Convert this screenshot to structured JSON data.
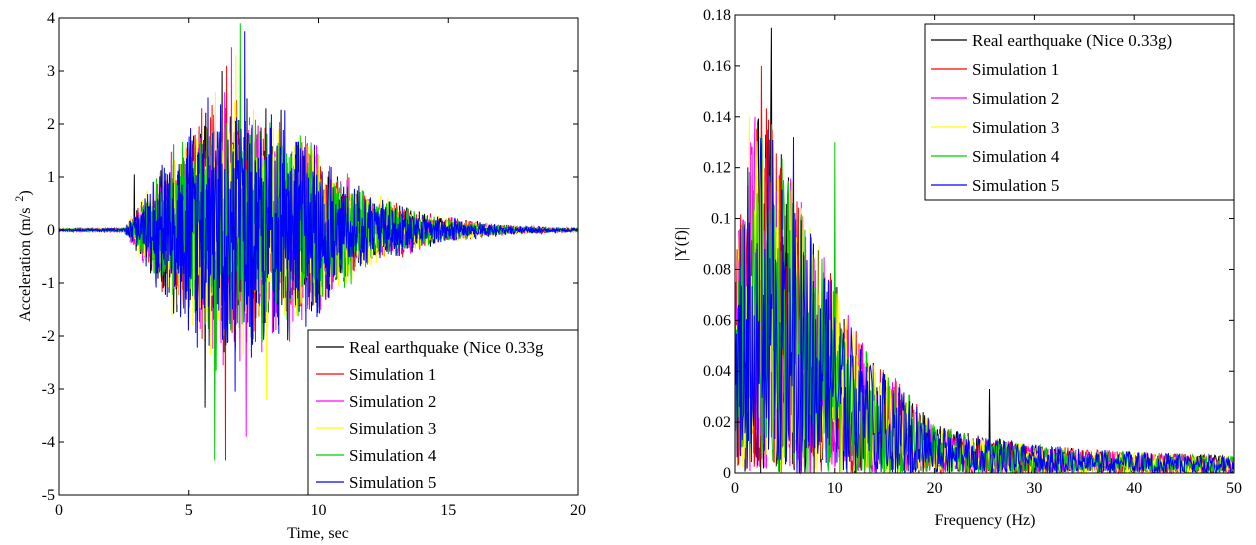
{
  "chart_data": [
    {
      "type": "line",
      "title": "",
      "xlabel": "Time, sec",
      "ylabel": "Acceleration (m/s",
      "ylabel_sup": "2",
      "ylabel_end": ")",
      "xlim": [
        0,
        20
      ],
      "ylim": [
        -5,
        4
      ],
      "xticks": [
        "0",
        "5",
        "10",
        "15",
        "20"
      ],
      "yticks": [
        "-5",
        "-4",
        "-3",
        "-2",
        "-1",
        "0",
        "1",
        "2",
        "3",
        "4"
      ],
      "grid": false,
      "legend_position": "bottom-right",
      "description": "Acceleration time histories of a real earthquake record and five simulated ground motions",
      "envelope": {
        "x": [
          0,
          2.5,
          3,
          3.5,
          4,
          5,
          5.5,
          6,
          6.5,
          7,
          8,
          9,
          10,
          11,
          12,
          13,
          14,
          15,
          16,
          17,
          18,
          20
        ],
        "amplitude": [
          0.03,
          0.05,
          0.6,
          1.2,
          1.8,
          2.8,
          3.1,
          3.8,
          3.5,
          3.4,
          3.1,
          2.9,
          2.3,
          1.5,
          1.0,
          0.8,
          0.5,
          0.35,
          0.25,
          0.15,
          0.1,
          0.05
        ]
      },
      "series": [
        {
          "name": "Real earthquake (Nice 0.33g",
          "color": "#000000",
          "peak": 3.0,
          "trough": -3.35
        },
        {
          "name": "Simulation 1",
          "color": "#ff0000",
          "peak": 3.1,
          "trough": -4.35
        },
        {
          "name": "Simulation 2",
          "color": "#ff00ff",
          "peak": 3.45,
          "trough": -3.9
        },
        {
          "name": "Simulation 3",
          "color": "#ffff00",
          "peak": 3.3,
          "trough": -3.2
        },
        {
          "name": "Simulation 4",
          "color": "#00cc00",
          "peak": 3.9,
          "trough": -4.35
        },
        {
          "name": "Simulation 5",
          "color": "#0000ff",
          "peak": 3.75,
          "trough": -3.05
        }
      ]
    },
    {
      "type": "line",
      "title": "",
      "xlabel": "Frequency (Hz)",
      "ylabel": "|Y(f)|",
      "xlim": [
        0,
        50
      ],
      "ylim": [
        0,
        0.18
      ],
      "xticks": [
        "0",
        "10",
        "20",
        "30",
        "40",
        "50"
      ],
      "yticks": [
        "0",
        "0.02",
        "0.04",
        "0.06",
        "0.08",
        "0.1",
        "0.12",
        "0.14",
        "0.16",
        "0.18"
      ],
      "grid": false,
      "legend_position": "top-right",
      "description": "Fourier amplitude spectra of the real earthquake record and five simulated ground motions",
      "envelope": {
        "x": [
          0,
          1,
          2,
          3,
          4,
          5,
          6,
          8,
          10,
          12,
          14,
          16,
          18,
          20,
          22,
          25,
          30,
          35,
          40,
          45,
          50
        ],
        "amplitude": [
          0.09,
          0.12,
          0.15,
          0.16,
          0.14,
          0.13,
          0.12,
          0.1,
          0.08,
          0.06,
          0.045,
          0.04,
          0.03,
          0.02,
          0.018,
          0.015,
          0.012,
          0.01,
          0.009,
          0.008,
          0.007
        ]
      },
      "series": [
        {
          "name": "Real earthquake (Nice 0.33g)",
          "color": "#000000",
          "peak": 0.175,
          "peak_x": 3.6,
          "secondary_peak": 0.033,
          "secondary_peak_x": 25.5
        },
        {
          "name": "Simulation 1",
          "color": "#ff0000",
          "peak": 0.16,
          "peak_x": 2.6
        },
        {
          "name": "Simulation 2",
          "color": "#ff00ff",
          "peak": 0.14,
          "peak_x": 2.0
        },
        {
          "name": "Simulation 3",
          "color": "#ffff00",
          "peak": 0.14,
          "peak_x": 1.4
        },
        {
          "name": "Simulation 4",
          "color": "#00cc00",
          "peak": 0.13,
          "peak_x": 10.0
        },
        {
          "name": "Simulation 5",
          "color": "#0000ff",
          "peak": 0.132,
          "peak_x": 5.8
        }
      ]
    }
  ]
}
